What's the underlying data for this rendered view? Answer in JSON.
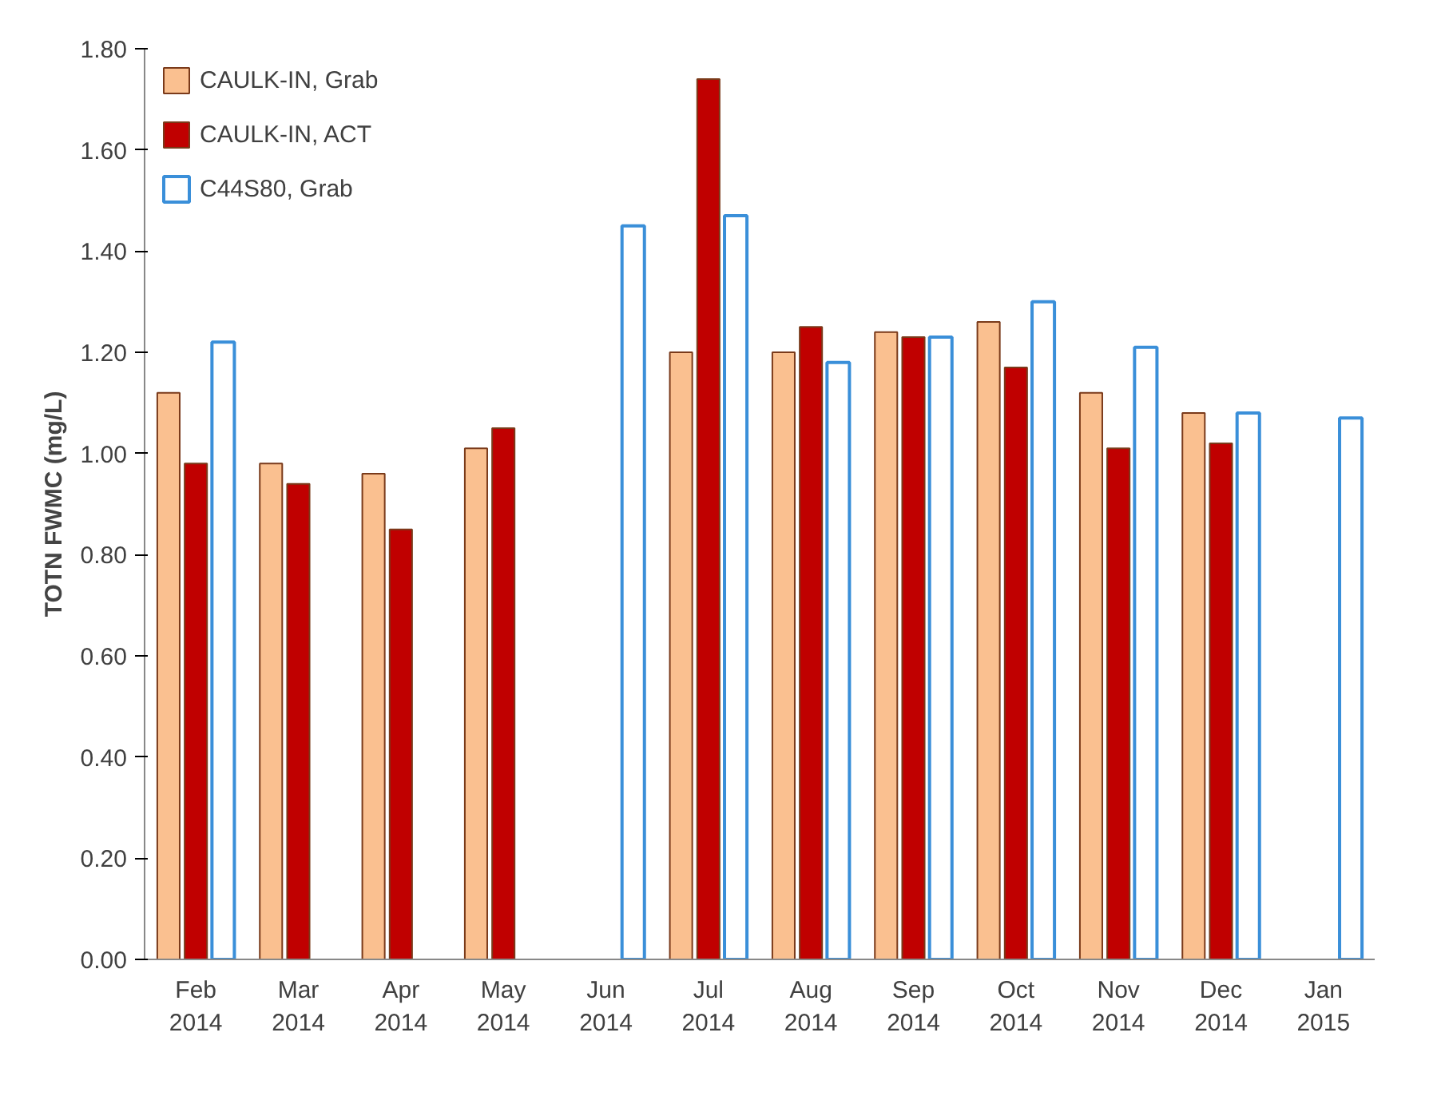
{
  "chart_data": {
    "type": "bar",
    "ylabel": "TOTN FWMC (mg/L)",
    "categories": [
      "Feb\n2014",
      "Mar\n2014",
      "Apr\n2014",
      "May\n2014",
      "Jun\n2014",
      "Jul\n2014",
      "Aug\n2014",
      "Sep\n2014",
      "Oct\n2014",
      "Nov\n2014",
      "Dec\n2014",
      "Jan\n2015"
    ],
    "series": [
      {
        "name": "CAULK-IN, Grab",
        "color": "#fac090",
        "values": [
          1.12,
          0.98,
          0.96,
          1.01,
          null,
          1.2,
          1.2,
          1.24,
          1.26,
          1.12,
          1.08,
          null
        ]
      },
      {
        "name": "CAULK-IN, ACT",
        "color": "#c00000",
        "values": [
          0.98,
          0.94,
          0.85,
          1.05,
          null,
          1.74,
          1.25,
          1.23,
          1.17,
          1.01,
          1.02,
          null
        ]
      },
      {
        "name": "C44S80, Grab",
        "color": "#3a8fd9",
        "values": [
          1.22,
          null,
          null,
          null,
          1.45,
          1.47,
          1.18,
          1.23,
          1.3,
          1.21,
          1.08,
          1.07
        ]
      }
    ],
    "ylim": [
      0,
      1.8
    ],
    "yticks": [
      {
        "value": 0,
        "label": "0.00"
      },
      {
        "value": 0.2,
        "label": "0.20"
      },
      {
        "value": 0.4,
        "label": "0.40"
      },
      {
        "value": 0.6,
        "label": "0.60"
      },
      {
        "value": 0.8,
        "label": "0.80"
      },
      {
        "value": 1.0,
        "label": "1.00"
      },
      {
        "value": 1.2,
        "label": "1.20"
      },
      {
        "value": 1.4,
        "label": "1.40"
      },
      {
        "value": 1.6,
        "label": "1.60"
      },
      {
        "value": 1.8,
        "label": "1.80"
      }
    ],
    "grid": false,
    "legend": "top left"
  }
}
